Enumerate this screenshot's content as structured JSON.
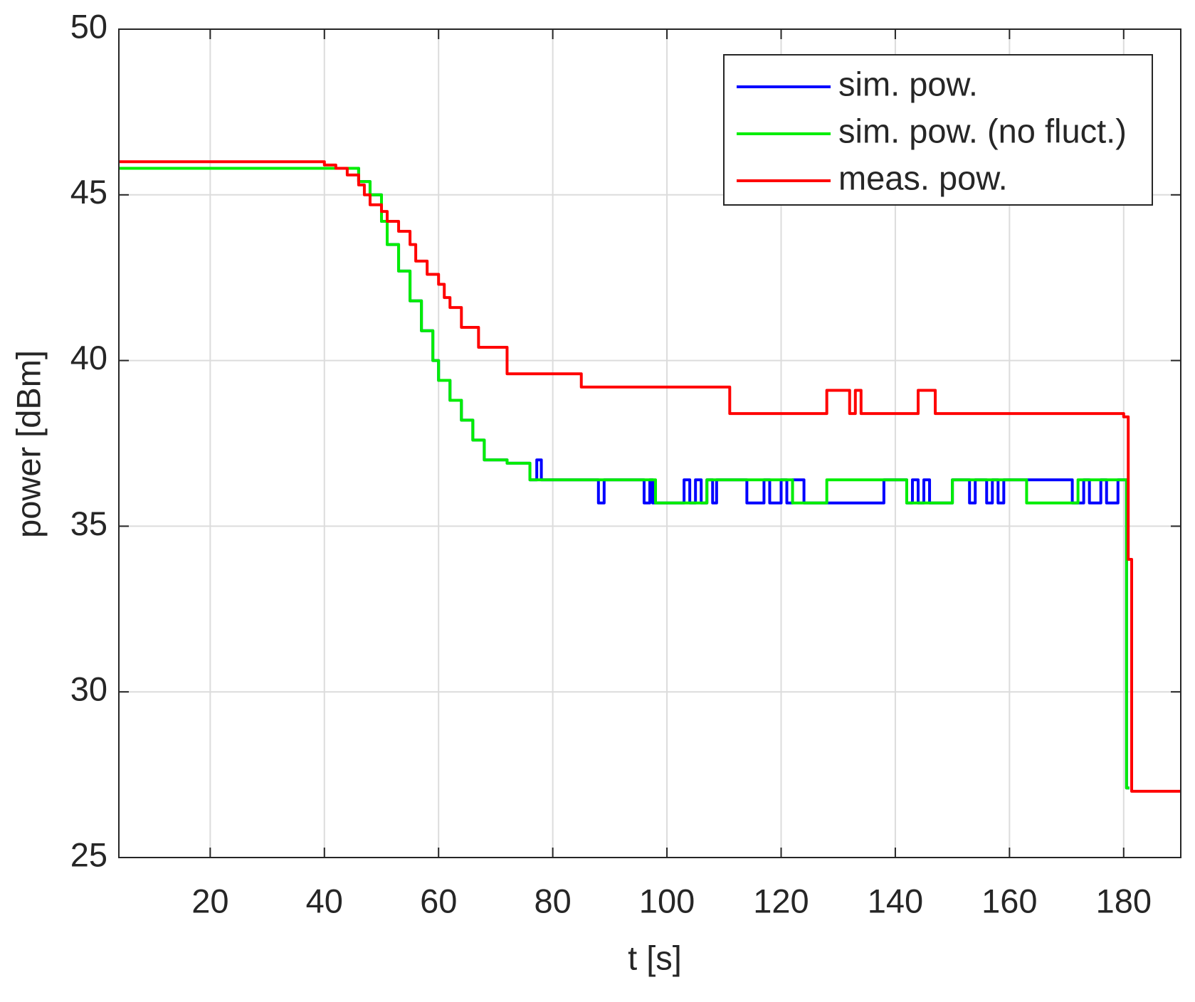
{
  "chart_data": {
    "type": "line",
    "step": "post",
    "xlabel": "t [s]",
    "ylabel": "power [dBm]",
    "xlim": [
      4,
      190
    ],
    "ylim": [
      25,
      50
    ],
    "xticks": [
      20,
      40,
      60,
      80,
      100,
      120,
      140,
      160,
      180
    ],
    "yticks": [
      25,
      30,
      35,
      40,
      45,
      50
    ],
    "grid": true,
    "legend": "upper right",
    "series": [
      {
        "name": "sim. pow.",
        "color": "#0000ff",
        "x": [
          4,
          45,
          46,
          48,
          50,
          51,
          53,
          55,
          57,
          59,
          60,
          62,
          64,
          66,
          68,
          72,
          76,
          77.2,
          78,
          88,
          89,
          96,
          97,
          97.5,
          103,
          104,
          105,
          106,
          107,
          108,
          108.7,
          114,
          117,
          118,
          120,
          121,
          122,
          124,
          137,
          138,
          142,
          143,
          144,
          145,
          146,
          150,
          153,
          154,
          156,
          157,
          158,
          159,
          171,
          173,
          174,
          176,
          177,
          179,
          180,
          180.5,
          181
        ],
        "values": [
          45.8,
          45.8,
          45.4,
          45.0,
          44.2,
          43.5,
          42.7,
          41.8,
          40.9,
          40.0,
          39.4,
          38.8,
          38.2,
          37.6,
          37.0,
          36.9,
          36.4,
          37.0,
          36.4,
          35.7,
          36.4,
          35.7,
          36.4,
          35.7,
          36.4,
          35.7,
          36.4,
          35.7,
          36.4,
          35.7,
          36.4,
          35.7,
          36.4,
          35.7,
          36.4,
          35.7,
          36.4,
          35.7,
          35.7,
          36.4,
          35.7,
          36.4,
          35.7,
          36.4,
          35.7,
          36.4,
          35.7,
          36.4,
          35.7,
          36.4,
          35.7,
          36.4,
          35.7,
          36.4,
          35.7,
          36.4,
          35.7,
          36.4,
          36.4,
          27.1,
          27.1
        ]
      },
      {
        "name": "sim. pow. (no fluct.)",
        "color": "#00ee00",
        "x": [
          4,
          45,
          46,
          48,
          50,
          51,
          53,
          55,
          57,
          59,
          60,
          62,
          64,
          66,
          68,
          72,
          76,
          98,
          107,
          122,
          128,
          142,
          150,
          163,
          172,
          180,
          180.5,
          181
        ],
        "values": [
          45.8,
          45.8,
          45.4,
          45.0,
          44.2,
          43.5,
          42.7,
          41.8,
          40.9,
          40.0,
          39.4,
          38.8,
          38.2,
          37.6,
          37.0,
          36.9,
          36.4,
          35.7,
          36.4,
          35.7,
          36.4,
          35.7,
          36.4,
          35.7,
          36.4,
          36.4,
          27.1,
          27.1
        ]
      },
      {
        "name": "meas. pow.",
        "color": "#ff0000",
        "x": [
          4,
          40,
          42,
          44,
          46,
          47,
          48,
          50,
          51,
          53,
          55,
          56,
          58,
          60,
          61,
          62,
          64,
          67,
          72,
          85,
          111,
          128,
          132,
          133,
          134,
          144,
          147,
          180,
          180.8,
          181.4,
          190
        ],
        "values": [
          46.0,
          45.9,
          45.8,
          45.6,
          45.3,
          45.0,
          44.7,
          44.5,
          44.2,
          43.9,
          43.5,
          43.0,
          42.6,
          42.3,
          41.9,
          41.6,
          41.0,
          40.4,
          39.6,
          39.2,
          38.4,
          39.1,
          38.4,
          39.1,
          38.4,
          39.1,
          38.4,
          38.3,
          34.0,
          27.0,
          27.0
        ]
      }
    ]
  }
}
